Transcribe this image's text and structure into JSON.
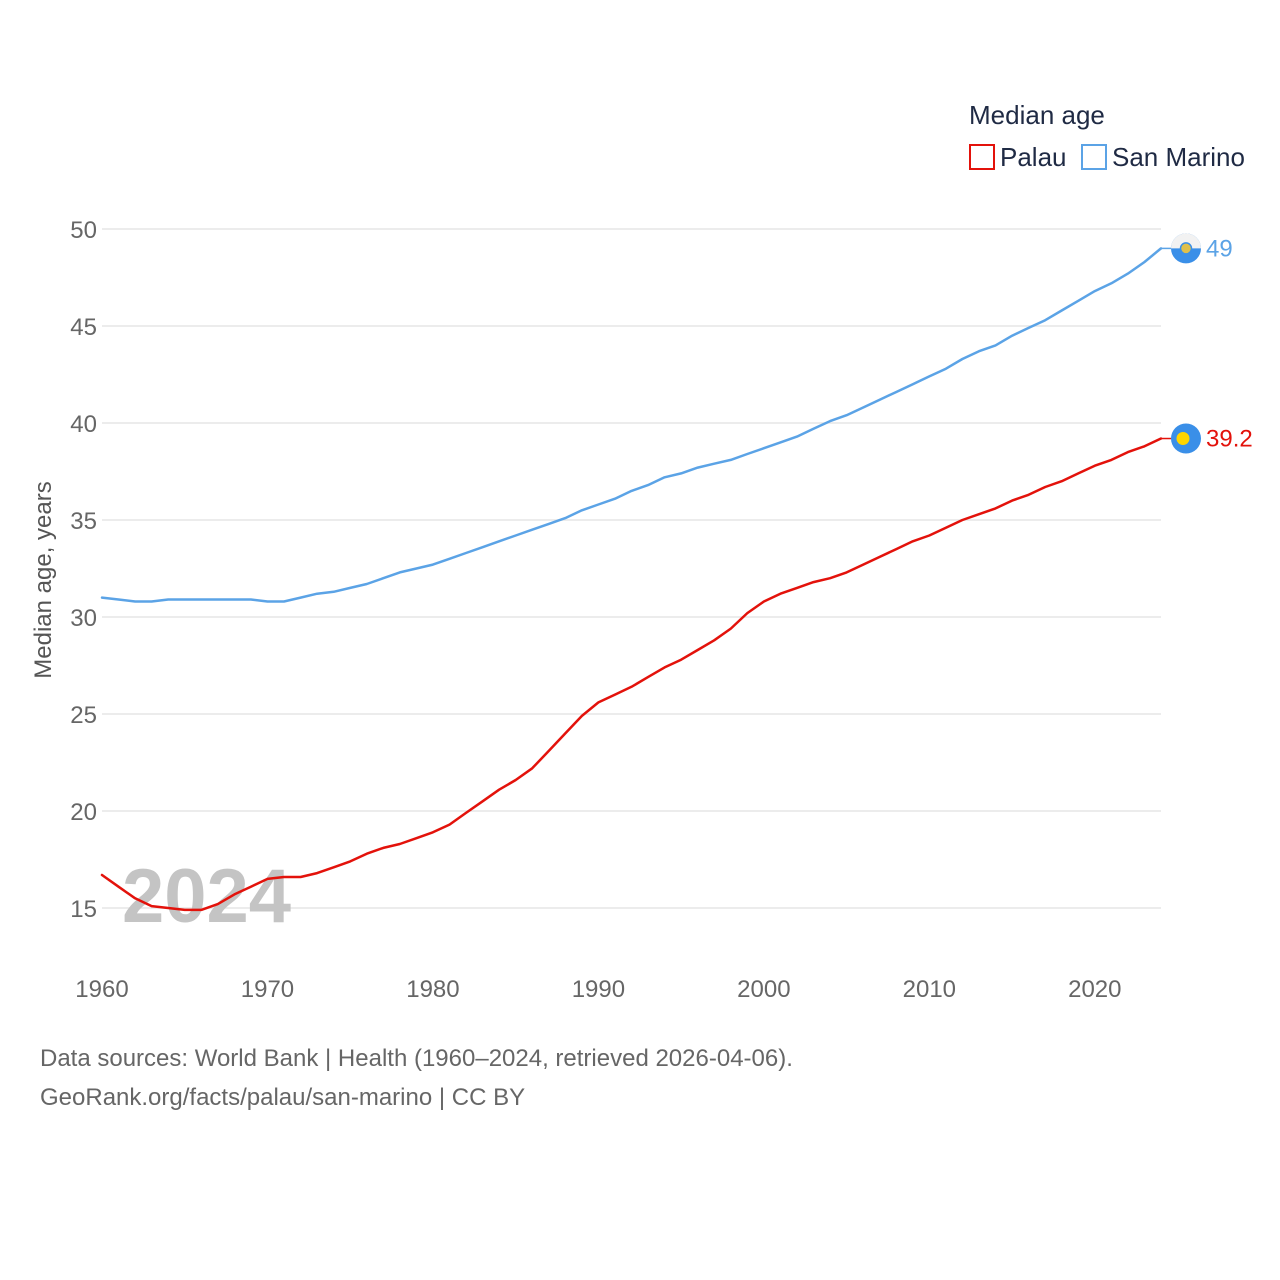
{
  "chart_data": {
    "type": "line",
    "legend_title": "Median age",
    "ylabel": "Median age, years",
    "xlabel": "",
    "ylim": [
      12,
      50.5
    ],
    "xlim": [
      1960,
      2024
    ],
    "y_ticks": [
      15,
      20,
      25,
      30,
      35,
      40,
      45,
      50
    ],
    "x_ticks": [
      1960,
      1970,
      1980,
      1990,
      2000,
      2010,
      2020
    ],
    "legend_position": "top-right",
    "current_year": "2024",
    "grid": true,
    "x": [
      1960,
      1961,
      1962,
      1963,
      1964,
      1965,
      1966,
      1967,
      1968,
      1969,
      1970,
      1971,
      1972,
      1973,
      1974,
      1975,
      1976,
      1977,
      1978,
      1979,
      1980,
      1981,
      1982,
      1983,
      1984,
      1985,
      1986,
      1987,
      1988,
      1989,
      1990,
      1991,
      1992,
      1993,
      1994,
      1995,
      1996,
      1997,
      1998,
      1999,
      2000,
      2001,
      2002,
      2003,
      2004,
      2005,
      2006,
      2007,
      2008,
      2009,
      2010,
      2011,
      2012,
      2013,
      2014,
      2015,
      2016,
      2017,
      2018,
      2019,
      2020,
      2021,
      2022,
      2023,
      2024
    ],
    "series": [
      {
        "name": "Palau",
        "color": "#e3120b",
        "end_label": "39.2",
        "values": [
          16.7,
          16.1,
          15.5,
          15.1,
          15.0,
          14.9,
          14.9,
          15.2,
          15.7,
          16.1,
          16.5,
          16.6,
          16.6,
          16.8,
          17.1,
          17.4,
          17.8,
          18.1,
          18.3,
          18.6,
          18.9,
          19.3,
          19.9,
          20.5,
          21.1,
          21.6,
          22.2,
          23.1,
          24.0,
          24.9,
          25.6,
          26.0,
          26.4,
          26.9,
          27.4,
          27.8,
          28.3,
          28.8,
          29.4,
          30.2,
          30.8,
          31.2,
          31.5,
          31.8,
          32.0,
          32.3,
          32.7,
          33.1,
          33.5,
          33.9,
          34.2,
          34.6,
          35.0,
          35.3,
          35.6,
          36.0,
          36.3,
          36.7,
          37.0,
          37.4,
          37.8,
          38.1,
          38.5,
          38.8,
          39.2
        ]
      },
      {
        "name": "San Marino",
        "color": "#5ba3e6",
        "end_label": "49",
        "values": [
          31.0,
          30.9,
          30.8,
          30.8,
          30.9,
          30.9,
          30.9,
          30.9,
          30.9,
          30.9,
          30.8,
          30.8,
          31.0,
          31.2,
          31.3,
          31.5,
          31.7,
          32.0,
          32.3,
          32.5,
          32.7,
          33.0,
          33.3,
          33.6,
          33.9,
          34.2,
          34.5,
          34.8,
          35.1,
          35.5,
          35.8,
          36.1,
          36.5,
          36.8,
          37.2,
          37.4,
          37.7,
          37.9,
          38.1,
          38.4,
          38.7,
          39.0,
          39.3,
          39.7,
          40.1,
          40.4,
          40.8,
          41.2,
          41.6,
          42.0,
          42.4,
          42.8,
          43.3,
          43.7,
          44.0,
          44.5,
          44.9,
          45.3,
          45.8,
          46.3,
          46.8,
          47.2,
          47.7,
          48.3,
          49.0
        ]
      }
    ],
    "footer": {
      "line1": "Data sources: World Bank | Health (1960–2024, retrieved 2026-04-06).",
      "line2": "GeoRank.org/facts/palau/san-marino | CC BY"
    }
  },
  "flag_icons": [
    "san-marino-flag-icon",
    "palau-flag-icon"
  ]
}
